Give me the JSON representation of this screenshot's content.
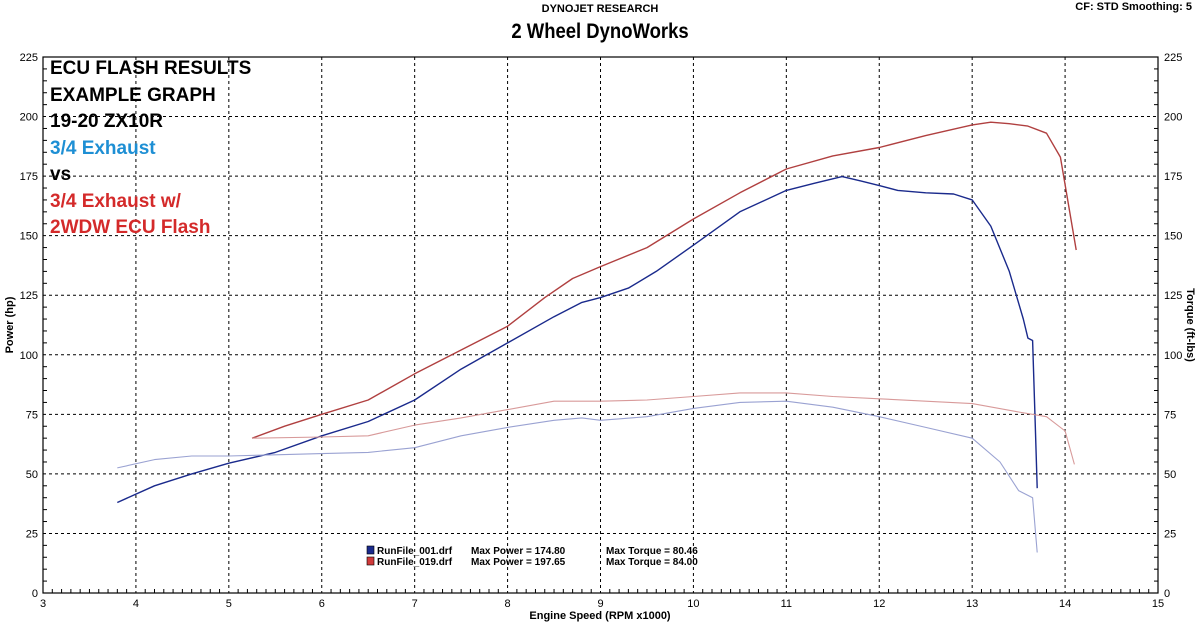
{
  "header": {
    "brand": "DYNOJET RESEARCH",
    "settings": "CF: STD  Smoothing: 5",
    "title": "2 Wheel DynoWorks"
  },
  "annotations": [
    {
      "text": "ECU FLASH RESULTS",
      "color": "#000000"
    },
    {
      "text": "EXAMPLE GRAPH",
      "color": "#000000"
    },
    {
      "text": "19-20 ZX10R",
      "color": "#000000"
    },
    {
      "text": "3/4 Exhaust",
      "color": "#1e8fd4"
    },
    {
      "text": "vs",
      "color": "#000000"
    },
    {
      "text": "3/4 Exhaust w/",
      "color": "#d42a2a"
    },
    {
      "text": "2WDW ECU Flash",
      "color": "#d42a2a"
    }
  ],
  "chart_data": {
    "type": "line",
    "xlabel": "Engine Speed (RPM x1000)",
    "ylabel": "Power (hp)",
    "y2label": "Torque (ft-lbs)",
    "xlim": [
      3,
      15
    ],
    "ylim": [
      0,
      225
    ],
    "xticks": [
      3,
      4,
      5,
      6,
      7,
      8,
      9,
      10,
      11,
      12,
      13,
      14,
      15
    ],
    "yticks": [
      0,
      25,
      50,
      75,
      100,
      125,
      150,
      175,
      200,
      225
    ],
    "grid": true,
    "series": [
      {
        "name": "RunFile_001.drf",
        "metric": "power",
        "color": "#1a2a8c",
        "x": [
          3.8,
          4.2,
          4.6,
          5.0,
          5.5,
          6.0,
          6.5,
          7.0,
          7.5,
          8.0,
          8.5,
          8.8,
          9.0,
          9.3,
          9.6,
          10.0,
          10.5,
          11.0,
          11.3,
          11.6,
          11.8,
          12.0,
          12.2,
          12.5,
          12.8,
          13.0,
          13.2,
          13.4,
          13.55,
          13.6,
          13.65,
          13.68,
          13.7
        ],
        "y": [
          38,
          45,
          50,
          54.5,
          59,
          66,
          72,
          81,
          94,
          105,
          116,
          122,
          124,
          128,
          135,
          146,
          160,
          169,
          172,
          174.8,
          173,
          171,
          169,
          168,
          167.5,
          165,
          154,
          135,
          115,
          107,
          106,
          70,
          44
        ]
      },
      {
        "name": "RunFile_001.drf",
        "metric": "torque",
        "color": "#9aa2d2",
        "x": [
          3.8,
          4.2,
          4.6,
          5.0,
          5.5,
          6.0,
          6.5,
          7.0,
          7.5,
          8.0,
          8.5,
          8.8,
          9.0,
          9.5,
          10.0,
          10.5,
          11.0,
          11.5,
          12.0,
          12.5,
          13.0,
          13.3,
          13.5,
          13.65,
          13.7
        ],
        "y": [
          52.5,
          56,
          57.5,
          57.5,
          58,
          58.5,
          59,
          61,
          66,
          69.5,
          72.5,
          73.5,
          72.5,
          74,
          77.5,
          80,
          80.5,
          78,
          74,
          69.5,
          65,
          55,
          43,
          40,
          17
        ]
      },
      {
        "name": "RunFile_019.drf",
        "metric": "power",
        "color": "#b04040",
        "x": [
          5.25,
          5.6,
          6.0,
          6.5,
          7.0,
          7.5,
          8.0,
          8.4,
          8.7,
          9.0,
          9.5,
          10.0,
          10.5,
          11.0,
          11.5,
          12.0,
          12.5,
          13.0,
          13.2,
          13.4,
          13.6,
          13.8,
          13.95,
          14.05,
          14.12
        ],
        "y": [
          65,
          70,
          75,
          81,
          92,
          102,
          112,
          124,
          132,
          137,
          145,
          157,
          168,
          178,
          183.5,
          187,
          192,
          196.5,
          197.65,
          197,
          196,
          193,
          183,
          160,
          144
        ]
      },
      {
        "name": "RunFile_019.drf",
        "metric": "torque",
        "color": "#d89a9a",
        "x": [
          5.25,
          6.0,
          6.5,
          7.0,
          7.5,
          8.0,
          8.5,
          9.0,
          9.5,
          10.0,
          10.5,
          11.0,
          11.5,
          12.0,
          12.5,
          13.0,
          13.5,
          13.8,
          14.0,
          14.1
        ],
        "y": [
          65,
          65.5,
          66,
          70.5,
          73.5,
          77,
          80.5,
          80.5,
          81,
          82.5,
          84,
          84,
          82.5,
          81.5,
          80.5,
          79.5,
          76,
          74,
          68,
          54
        ]
      }
    ],
    "legend": {
      "placement": "bottom-center",
      "entries": [
        {
          "file": "RunFile_001.drf",
          "max_power_label": "Max Power = 174.80",
          "max_torque_label": "Max Torque = 80.46",
          "color": "#1a2a8c"
        },
        {
          "file": "RunFile_019.drf",
          "max_power_label": "Max Power = 197.65",
          "max_torque_label": "Max Torque = 84.00",
          "color": "#d03a3a"
        }
      ]
    }
  }
}
